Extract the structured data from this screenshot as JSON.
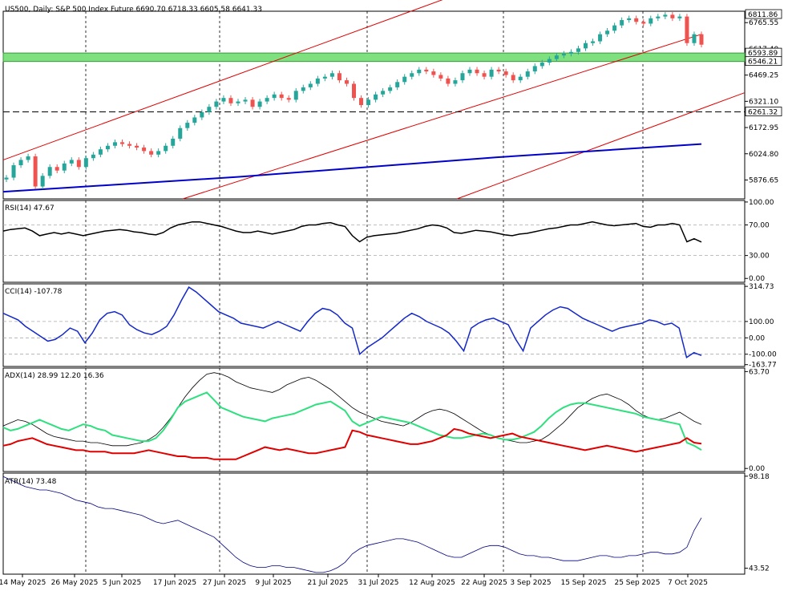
{
  "header": {
    "symbol": "US500",
    "timeframe": "Daily",
    "description": "S&P 500   Index Future",
    "ohlc": "6690.70 6718.33 6605.58 6641.33"
  },
  "colors": {
    "bull": "#26a69a",
    "bear": "#ef5350",
    "channel": "#e00000",
    "ma": "#0000c8",
    "zone": "#7ee07e",
    "rsi": "#000000",
    "cci": "#1428c8",
    "adx": "#000000",
    "plus_di": "#2ee07e",
    "minus_di": "#e00000",
    "atr": "#000080"
  },
  "chart_data": [
    {
      "type": "candlestick",
      "pane": "price",
      "title": "US500, Daily:  S&P 500   Index Future  6690.70 6718.33 6605.58 6641.33",
      "x_tick_labels": [
        "14 May 2025",
        "26 May 2025",
        "5 Jun 2025",
        "17 Jun 2025",
        "27 Jun 2025",
        "9 Jul 2025",
        "21 Jul 2025",
        "31 Jul 2025",
        "12 Aug 2025",
        "22 Aug 2025",
        "3 Sep 2025",
        "15 Sep 2025",
        "25 Sep 2025",
        "7 Oct 2025"
      ],
      "y_tick_labels": [
        "6765.55",
        "6617.40",
        "6469.25",
        "6321.10",
        "6172.95",
        "6024.80",
        "5876.65"
      ],
      "ylim": [
        5770,
        6830
      ],
      "price_tags": [
        "6811.86",
        "6593.89",
        "6546.21",
        "6261.32"
      ],
      "support_zone": [
        6546.21,
        6593.89
      ],
      "dashed_level": 6261.32,
      "close": [
        5890,
        5960,
        5990,
        6010,
        5840,
        5900,
        5950,
        5930,
        5970,
        5990,
        5950,
        6000,
        6020,
        6050,
        6070,
        6090,
        6080,
        6070,
        6060,
        6040,
        6020,
        6040,
        6070,
        6110,
        6170,
        6200,
        6230,
        6260,
        6290,
        6320,
        6340,
        6310,
        6320,
        6330,
        6290,
        6320,
        6340,
        6360,
        6340,
        6330,
        6380,
        6400,
        6420,
        6450,
        6460,
        6480,
        6440,
        6420,
        6340,
        6300,
        6330,
        6360,
        6380,
        6400,
        6430,
        6460,
        6480,
        6500,
        6490,
        6470,
        6450,
        6420,
        6440,
        6480,
        6500,
        6480,
        6460,
        6500,
        6490,
        6470,
        6440,
        6460,
        6490,
        6520,
        6540,
        6560,
        6580,
        6590,
        6600,
        6620,
        6650,
        6660,
        6700,
        6720,
        6750,
        6780,
        6790,
        6770,
        6760,
        6790,
        6800,
        6810,
        6790,
        6800,
        6650,
        6700,
        6641
      ],
      "moving_average": [
        5810,
        5895,
        6005,
        6080
      ],
      "channel_upper_1": [
        5990,
        6900
      ],
      "channel_lower_1": [
        5770,
        6700
      ],
      "channel_lower_2": [
        5770,
        6370
      ],
      "series": [
        {
          "name": "US500"
        }
      ]
    },
    {
      "type": "line",
      "pane": "rsi",
      "title": "RSI(14) 47.67",
      "y_tick_labels": [
        "100.00",
        "70.00",
        "30.00",
        "0.00"
      ],
      "ylim": [
        -5,
        102
      ],
      "levels": [
        70,
        30
      ],
      "values": [
        62,
        64,
        65,
        66,
        62,
        56,
        58,
        60,
        58,
        60,
        58,
        56,
        58,
        60,
        62,
        63,
        64,
        63,
        61,
        60,
        58,
        57,
        60,
        66,
        70,
        72,
        74,
        74,
        72,
        70,
        68,
        65,
        62,
        60,
        60,
        62,
        60,
        58,
        60,
        62,
        64,
        68,
        70,
        70,
        72,
        73,
        70,
        68,
        56,
        48,
        54,
        56,
        57,
        58,
        59,
        61,
        63,
        65,
        68,
        70,
        69,
        66,
        60,
        59,
        61,
        63,
        62,
        61,
        59,
        57,
        56,
        58,
        59,
        61,
        63,
        65,
        66,
        68,
        70,
        70,
        72,
        74,
        72,
        70,
        69,
        70,
        71,
        72,
        68,
        67,
        70,
        70,
        72,
        70,
        48,
        52,
        47.67
      ]
    },
    {
      "type": "line",
      "pane": "cci",
      "title": "CCI(14) -107.78",
      "y_tick_labels": [
        "314.73",
        "100.00",
        "0.00",
        "-100.00",
        "-163.77"
      ],
      "ylim": [
        -175,
        330
      ],
      "levels": [
        100,
        0,
        -100
      ],
      "values": [
        150,
        130,
        110,
        70,
        40,
        10,
        -20,
        -10,
        20,
        60,
        40,
        -30,
        30,
        110,
        150,
        160,
        140,
        80,
        50,
        30,
        20,
        40,
        70,
        140,
        230,
        310,
        280,
        240,
        200,
        160,
        140,
        120,
        90,
        80,
        70,
        60,
        80,
        100,
        80,
        60,
        40,
        100,
        150,
        180,
        170,
        140,
        90,
        60,
        -100,
        -60,
        -30,
        0,
        40,
        80,
        120,
        150,
        130,
        100,
        80,
        60,
        30,
        -20,
        -80,
        60,
        90,
        110,
        120,
        100,
        80,
        -10,
        -80,
        60,
        100,
        140,
        170,
        190,
        180,
        150,
        120,
        100,
        80,
        60,
        40,
        60,
        70,
        80,
        90,
        110,
        100,
        80,
        90,
        60,
        -120,
        -90,
        -107.78
      ]
    },
    {
      "type": "line",
      "pane": "adx",
      "title": "ADX(14) 28.99 12.20 16.36",
      "y_tick_labels": [
        "63.70",
        "0.00"
      ],
      "ylim": [
        -2,
        66
      ],
      "series": [
        {
          "name": "ADX",
          "values": [
            28,
            30,
            32,
            31,
            29,
            26,
            23,
            21,
            20,
            19,
            18,
            18,
            17,
            17,
            16,
            15,
            15,
            15,
            16,
            17,
            19,
            22,
            27,
            33,
            40,
            47,
            53,
            58,
            62,
            63,
            62,
            60,
            57,
            55,
            53,
            52,
            51,
            50,
            52,
            55,
            57,
            59,
            60,
            58,
            55,
            52,
            48,
            44,
            40,
            37,
            35,
            33,
            31,
            30,
            29,
            28,
            30,
            33,
            36,
            38,
            39,
            38,
            36,
            33,
            30,
            27,
            24,
            22,
            20,
            19,
            18,
            17,
            17,
            18,
            19,
            22,
            26,
            30,
            35,
            40,
            43,
            46,
            48,
            49,
            47,
            45,
            42,
            38,
            35,
            33,
            32,
            33,
            35,
            37,
            34,
            31,
            28.99
          ]
        },
        {
          "name": "+DI",
          "values": [
            27,
            25,
            26,
            28,
            30,
            32,
            30,
            28,
            26,
            25,
            27,
            29,
            28,
            26,
            25,
            22,
            21,
            20,
            19,
            18,
            18,
            20,
            25,
            32,
            40,
            44,
            46,
            48,
            50,
            45,
            40,
            38,
            36,
            34,
            33,
            32,
            31,
            33,
            34,
            35,
            36,
            38,
            40,
            42,
            43,
            44,
            41,
            38,
            31,
            28,
            30,
            32,
            34,
            33,
            32,
            31,
            30,
            28,
            26,
            24,
            22,
            21,
            20,
            20,
            21,
            22,
            23,
            22,
            20,
            19,
            19,
            20,
            22,
            24,
            28,
            33,
            37,
            40,
            42,
            43,
            43,
            42,
            41,
            40,
            39,
            38,
            37,
            36,
            34,
            33,
            32,
            31,
            30,
            29,
            17,
            15,
            12.2
          ]
        },
        {
          "name": "-DI",
          "values": [
            15,
            16,
            18,
            19,
            20,
            18,
            16,
            15,
            14,
            13,
            12,
            12,
            11,
            11,
            11,
            10,
            10,
            10,
            10,
            11,
            12,
            11,
            10,
            9,
            8,
            8,
            7,
            7,
            7,
            6,
            6,
            6,
            6,
            8,
            10,
            12,
            14,
            13,
            12,
            13,
            12,
            11,
            10,
            10,
            11,
            12,
            13,
            14,
            25,
            24,
            22,
            21,
            20,
            19,
            18,
            17,
            16,
            16,
            17,
            18,
            20,
            22,
            26,
            25,
            23,
            22,
            21,
            20,
            21,
            22,
            23,
            21,
            20,
            19,
            18,
            17,
            16,
            15,
            14,
            13,
            12,
            13,
            14,
            15,
            14,
            13,
            12,
            11,
            12,
            13,
            14,
            15,
            16,
            17,
            20,
            17,
            16.36
          ]
        }
      ]
    },
    {
      "type": "line",
      "pane": "atr",
      "title": "ATR(14) 73.48",
      "y_tick_labels": [
        "98.18",
        "43.52"
      ],
      "ylim": [
        40,
        100
      ],
      "values": [
        98,
        96,
        94,
        92,
        91,
        90,
        90,
        89,
        88,
        86,
        84,
        83,
        82,
        80,
        79,
        79,
        78,
        77,
        76,
        75,
        73,
        71,
        70,
        71,
        72,
        70,
        68,
        66,
        64,
        62,
        58,
        54,
        50,
        47,
        45,
        44,
        44,
        45,
        45,
        44,
        44,
        43,
        42,
        41,
        41,
        42,
        44,
        47,
        52,
        55,
        57,
        58,
        59,
        60,
        61,
        61,
        60,
        59,
        57,
        55,
        53,
        51,
        50,
        50,
        52,
        54,
        56,
        57,
        57,
        56,
        54,
        52,
        51,
        51,
        50,
        50,
        49,
        48,
        48,
        48,
        49,
        50,
        51,
        51,
        50,
        50,
        51,
        51,
        52,
        53,
        53,
        52,
        52,
        53,
        56,
        66,
        73.48
      ]
    }
  ]
}
